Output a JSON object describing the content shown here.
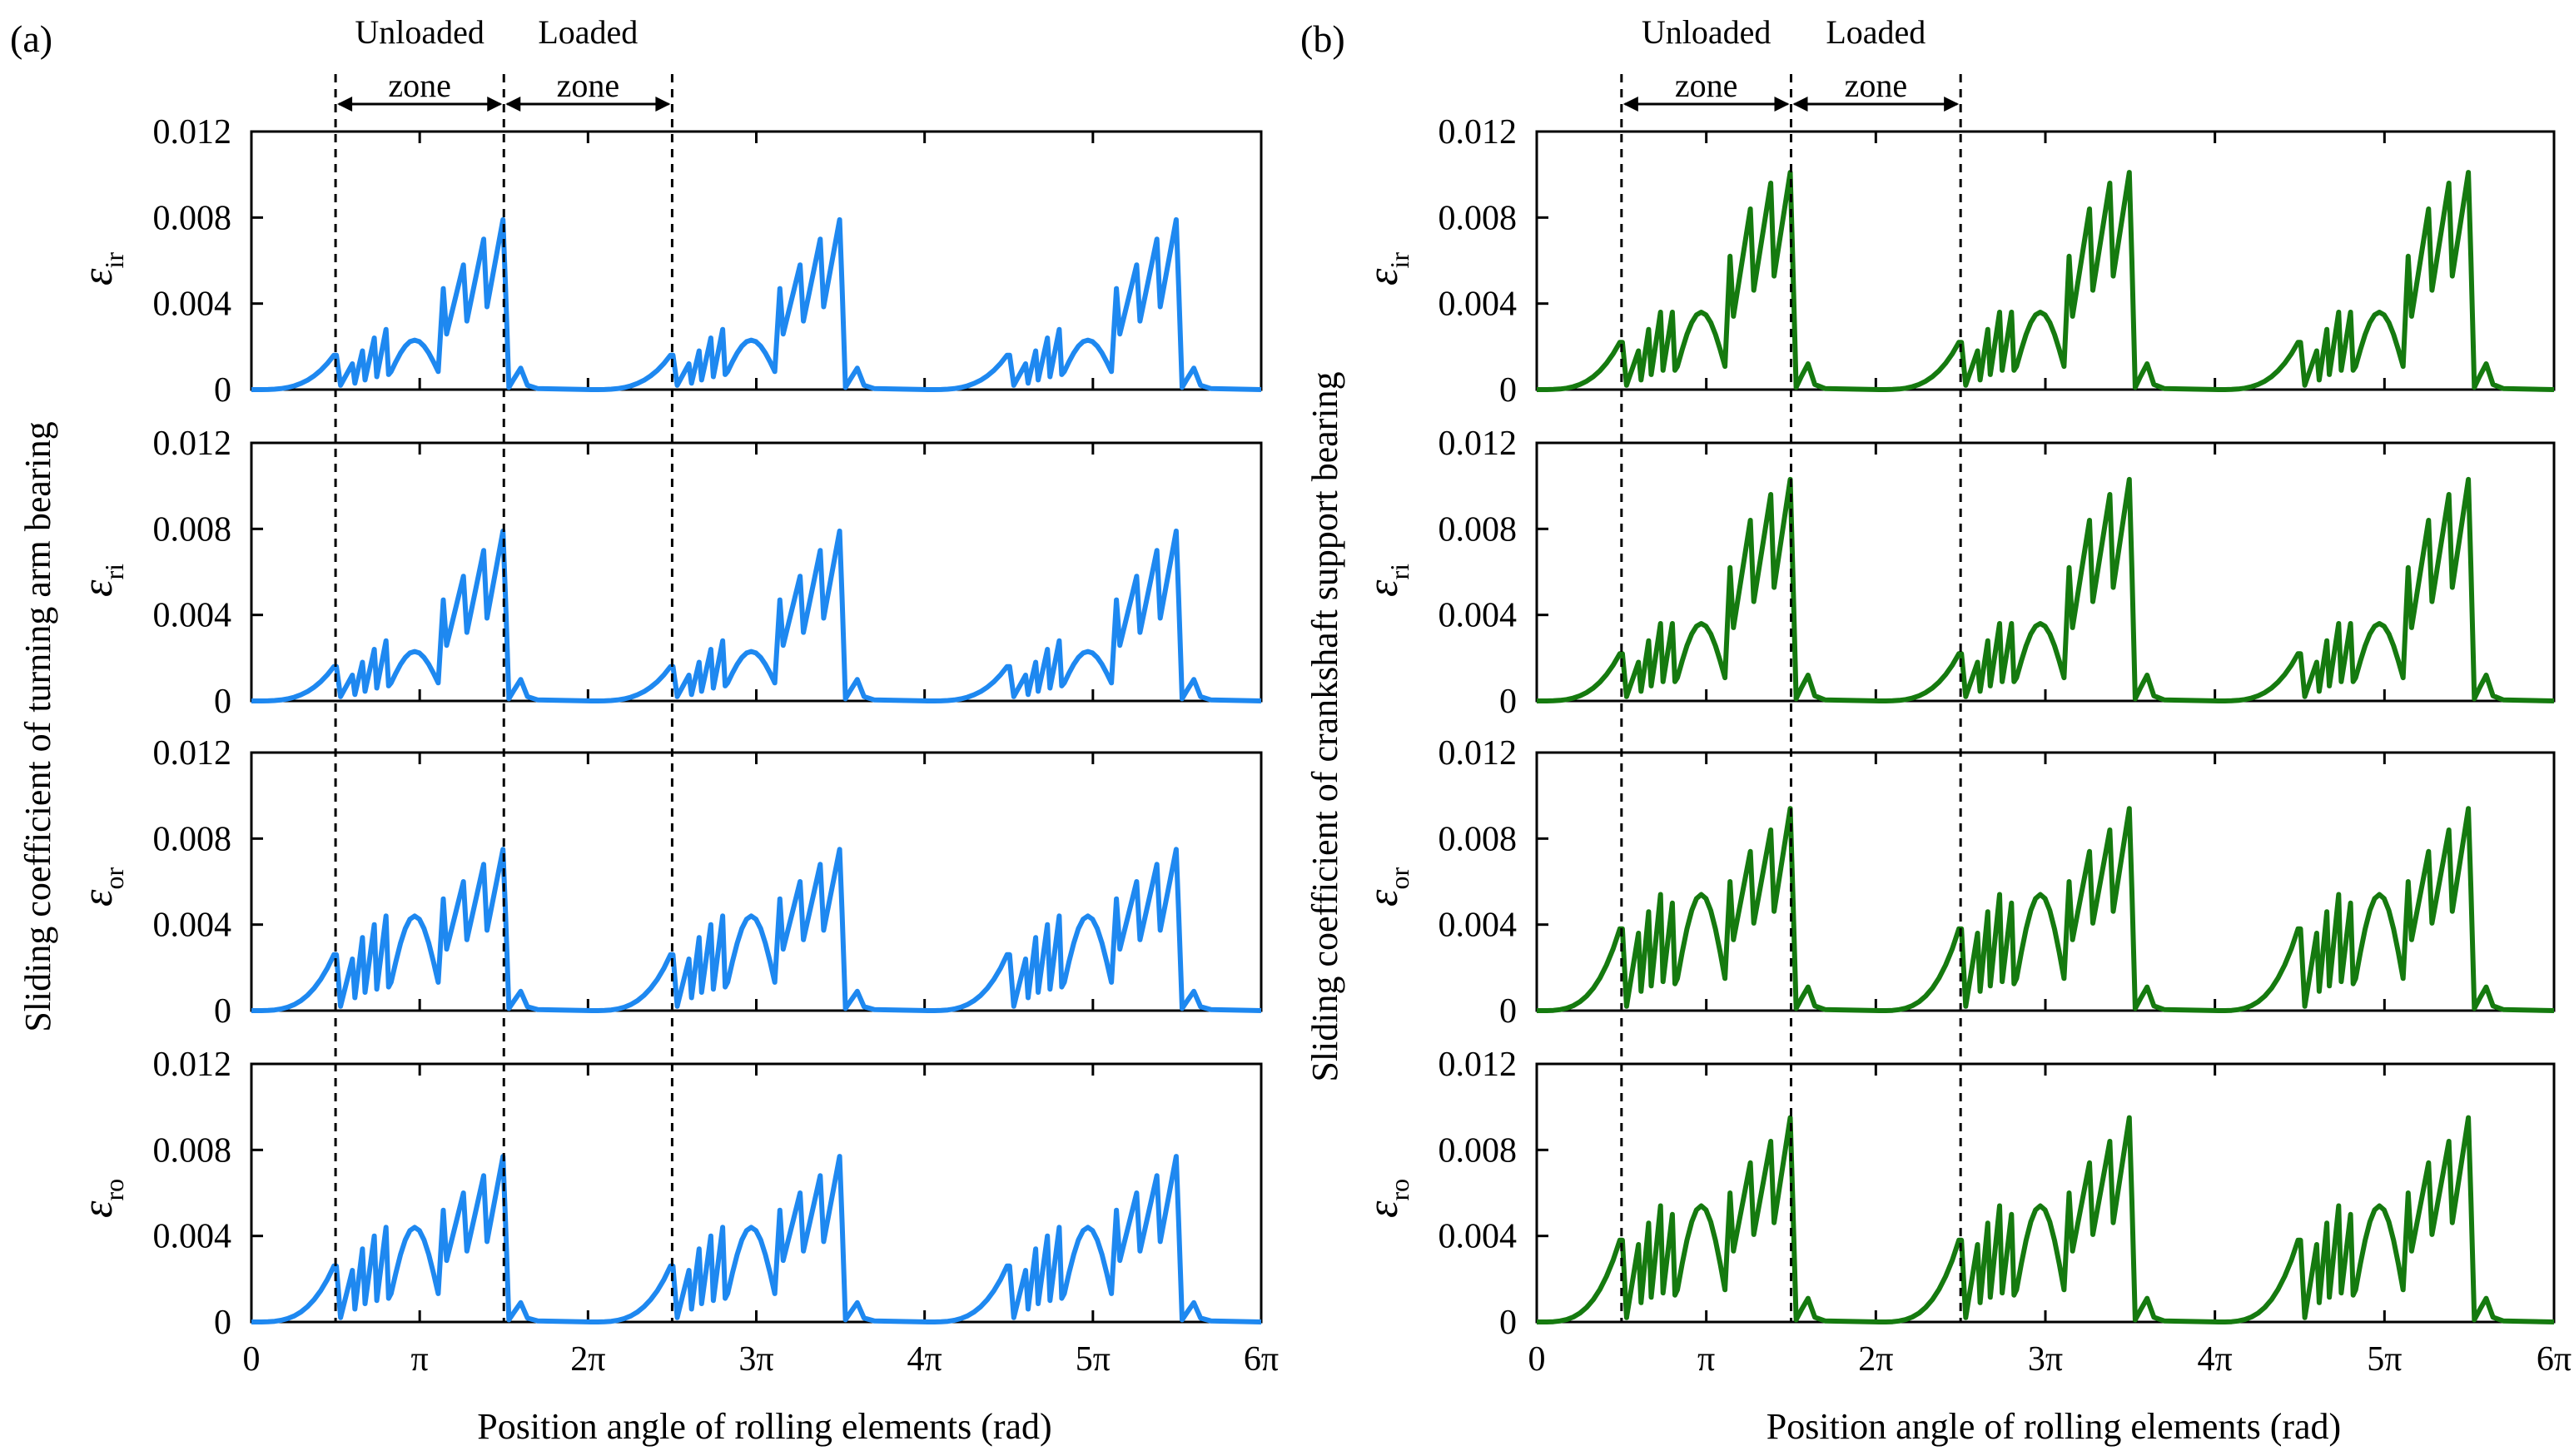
{
  "chart_data": [
    {
      "type": "line",
      "panel_label": "(a)",
      "ylabel": "Sliding coefficient of turning arm bearing",
      "xlabel": "Position angle of rolling elements (rad)",
      "color": "#1e88f0",
      "xlim": [
        0,
        6
      ],
      "x_unit": "π",
      "x_ticks": [
        0,
        1,
        2,
        3,
        4,
        5,
        6
      ],
      "x_tick_labels": [
        "0",
        "π",
        "2π",
        "3π",
        "4π",
        "5π",
        "6π"
      ],
      "ylim": [
        0,
        0.012
      ],
      "y_ticks": [
        0,
        0.004,
        0.008,
        0.012
      ],
      "y_tick_labels": [
        "0",
        "0.004",
        "0.008",
        "0.012"
      ],
      "zone_boundaries_pi": [
        0.5,
        1.5,
        2.5
      ],
      "zone_labels": [
        {
          "line1": "Unloaded",
          "line2": "zone"
        },
        {
          "line1": "Loaded",
          "line2": "zone"
        }
      ],
      "series": [
        {
          "name": "ε_ir",
          "symbol": "ε",
          "sub": "ir",
          "peaks": {
            "first": 0.0016,
            "teeth": [
              0.0012,
              0.0018,
              0.0024,
              0.0028,
              0.0047,
              0.0058,
              0.007,
              0.0079
            ],
            "hump": 0.0023,
            "tail": 0.001
          }
        },
        {
          "name": "ε_ri",
          "symbol": "ε",
          "sub": "ri",
          "peaks": {
            "first": 0.0016,
            "teeth": [
              0.0012,
              0.0018,
              0.0024,
              0.0028,
              0.0047,
              0.0058,
              0.007,
              0.0079
            ],
            "hump": 0.0023,
            "tail": 0.001
          }
        },
        {
          "name": "ε_or",
          "symbol": "ε",
          "sub": "or",
          "peaks": {
            "first": 0.0026,
            "teeth": [
              0.0024,
              0.0034,
              0.004,
              0.0044,
              0.0052,
              0.006,
              0.0068,
              0.0075
            ],
            "hump": 0.0044,
            "tail": 0.0009
          }
        },
        {
          "name": "ε_ro",
          "symbol": "ε",
          "sub": "ro",
          "peaks": {
            "first": 0.0026,
            "teeth": [
              0.0024,
              0.0034,
              0.004,
              0.0044,
              0.0052,
              0.006,
              0.0068,
              0.0077
            ],
            "hump": 0.0044,
            "tail": 0.0009
          }
        }
      ]
    },
    {
      "type": "line",
      "panel_label": "(b)",
      "ylabel": "Sliding coefficient of crankshaft support bearing",
      "xlabel": "Position angle of rolling elements (rad)",
      "color": "#157a0f",
      "xlim": [
        0,
        6
      ],
      "x_unit": "π",
      "x_ticks": [
        0,
        1,
        2,
        3,
        4,
        5,
        6
      ],
      "x_tick_labels": [
        "0",
        "π",
        "2π",
        "3π",
        "4π",
        "5π",
        "6π"
      ],
      "ylim": [
        0,
        0.012
      ],
      "y_ticks": [
        0,
        0.004,
        0.008,
        0.012
      ],
      "y_tick_labels": [
        "0",
        "0.004",
        "0.008",
        "0.012"
      ],
      "zone_boundaries_pi": [
        0.5,
        1.5,
        2.5
      ],
      "zone_labels": [
        {
          "line1": "Unloaded",
          "line2": "zone"
        },
        {
          "line1": "Loaded",
          "line2": "zone"
        }
      ],
      "series": [
        {
          "name": "ε_ir",
          "symbol": "ε",
          "sub": "ir",
          "peaks": {
            "first": 0.0022,
            "teeth": [
              0.0018,
              0.0028,
              0.0036,
              0.0036,
              0.0062,
              0.0084,
              0.0096,
              0.0101
            ],
            "hump": 0.0036,
            "tail": 0.0012
          }
        },
        {
          "name": "ε_ri",
          "symbol": "ε",
          "sub": "ri",
          "peaks": {
            "first": 0.0022,
            "teeth": [
              0.0018,
              0.0028,
              0.0036,
              0.0036,
              0.0062,
              0.0084,
              0.0096,
              0.0103
            ],
            "hump": 0.0036,
            "tail": 0.0012
          }
        },
        {
          "name": "ε_or",
          "symbol": "ε",
          "sub": "or",
          "peaks": {
            "first": 0.0038,
            "teeth": [
              0.0036,
              0.0046,
              0.0054,
              0.005,
              0.006,
              0.0074,
              0.0084,
              0.0094
            ],
            "hump": 0.0054,
            "tail": 0.0011
          }
        },
        {
          "name": "ε_ro",
          "symbol": "ε",
          "sub": "ro",
          "peaks": {
            "first": 0.0038,
            "teeth": [
              0.0036,
              0.0046,
              0.0054,
              0.005,
              0.006,
              0.0074,
              0.0084,
              0.0095
            ],
            "hump": 0.0054,
            "tail": 0.0011
          }
        }
      ]
    }
  ]
}
